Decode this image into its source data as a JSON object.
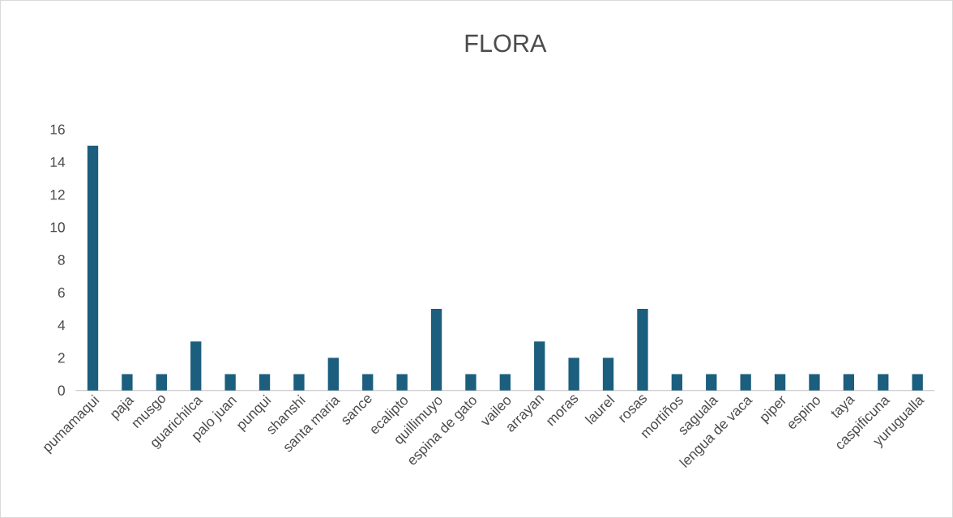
{
  "chart_data": {
    "type": "bar",
    "title": "FLORA",
    "categories": [
      "pumamaqui",
      "paja",
      "musgo",
      "guarichilca",
      "palo juan",
      "punqui",
      "shanshi",
      "santa maria",
      "sance",
      "ecalipto",
      "quillimuyo",
      "espina de gato",
      "vaileo",
      "arrayan",
      "moras",
      "laurel",
      "rosas",
      "mortiños",
      "saguala",
      "lengua de vaca",
      "piper",
      "espino",
      "taya",
      "caspificuna",
      "yurugualla"
    ],
    "values": [
      15,
      1,
      1,
      3,
      1,
      1,
      1,
      2,
      1,
      1,
      5,
      1,
      1,
      3,
      2,
      2,
      5,
      1,
      1,
      1,
      1,
      1,
      1,
      1,
      1
    ],
    "color": "#1b5e7e",
    "ylim": [
      0,
      16
    ],
    "yticks": [
      0,
      2,
      4,
      6,
      8,
      10,
      12,
      14,
      16
    ]
  }
}
